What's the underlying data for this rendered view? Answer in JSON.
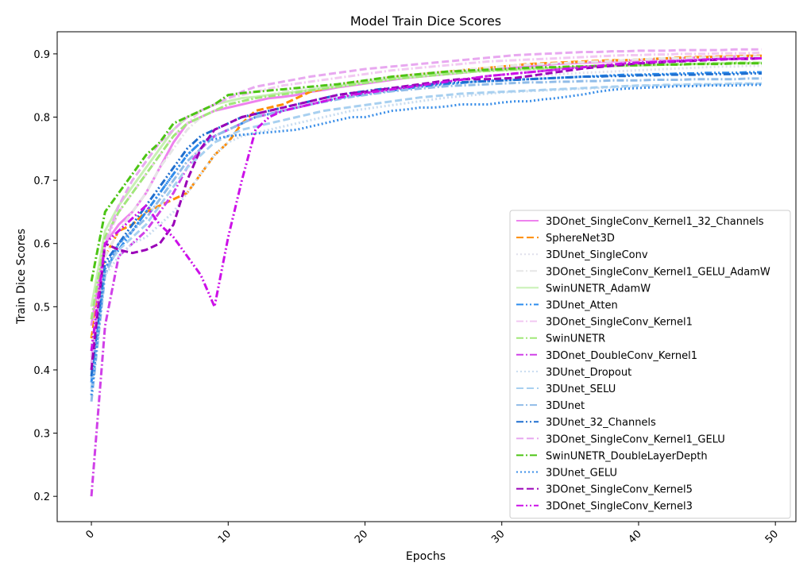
{
  "chart_data": {
    "type": "line",
    "title": "Model Train Dice Scores",
    "xlabel": "Epochs",
    "ylabel": "Train Dice Scores",
    "xlim": [
      -2.5,
      51.5
    ],
    "ylim": [
      0.16,
      0.935
    ],
    "xticks": [
      0,
      10,
      20,
      30,
      40,
      50
    ],
    "yticks": [
      0.2,
      0.3,
      0.4,
      0.5,
      0.6,
      0.7,
      0.8,
      0.9
    ],
    "grid": false,
    "legend_position": "lower-right",
    "series": [
      {
        "name": "3DOnet_SingleConv_Kernel1_32_Channels",
        "color": "#ee82ee",
        "dash": "solid",
        "values": [
          0.47,
          0.6,
          0.63,
          0.65,
          0.68,
          0.72,
          0.76,
          0.79,
          0.8,
          0.81,
          0.815,
          0.82,
          0.825,
          0.83,
          0.832,
          0.835,
          0.84,
          0.843,
          0.847,
          0.85,
          0.853,
          0.856,
          0.859,
          0.862,
          0.864,
          0.866,
          0.868,
          0.87,
          0.872,
          0.874,
          0.876,
          0.878,
          0.88,
          0.882,
          0.884,
          0.885,
          0.886,
          0.887,
          0.888,
          0.889,
          0.89,
          0.891,
          0.892,
          0.893,
          0.894,
          0.895,
          0.895,
          0.896,
          0.896,
          0.897
        ]
      },
      {
        "name": "SphereNet3D",
        "color": "#ff8c00",
        "dash": "dashed",
        "values": [
          0.45,
          0.58,
          0.62,
          0.63,
          0.65,
          0.66,
          0.67,
          0.68,
          0.71,
          0.74,
          0.76,
          0.79,
          0.81,
          0.815,
          0.82,
          0.83,
          0.84,
          0.845,
          0.85,
          0.855,
          0.855,
          0.86,
          0.863,
          0.866,
          0.868,
          0.87,
          0.872,
          0.874,
          0.876,
          0.878,
          0.88,
          0.882,
          0.884,
          0.885,
          0.886,
          0.887,
          0.888,
          0.889,
          0.89,
          0.89,
          0.891,
          0.892,
          0.893,
          0.894,
          0.895,
          0.895,
          0.896,
          0.896,
          0.897,
          0.897
        ]
      },
      {
        "name": "3DUnet_SingleConv",
        "color": "#e0e0ec",
        "dash": "dotted",
        "values": [
          0.44,
          0.57,
          0.6,
          0.62,
          0.64,
          0.67,
          0.7,
          0.73,
          0.75,
          0.77,
          0.78,
          0.79,
          0.8,
          0.805,
          0.81,
          0.815,
          0.82,
          0.825,
          0.83,
          0.833,
          0.836,
          0.839,
          0.842,
          0.845,
          0.847,
          0.85,
          0.852,
          0.854,
          0.856,
          0.858,
          0.86,
          0.862,
          0.864,
          0.866,
          0.868,
          0.869,
          0.87,
          0.871,
          0.872,
          0.873,
          0.874,
          0.875,
          0.876,
          0.877,
          0.878,
          0.879,
          0.88,
          0.88,
          0.881,
          0.881
        ]
      },
      {
        "name": "3DOnet_SingleConv_Kernel1_GELU_AdamW",
        "color": "#e6e6e6",
        "dash": "dashdot",
        "values": [
          0.43,
          0.58,
          0.62,
          0.65,
          0.68,
          0.72,
          0.75,
          0.78,
          0.8,
          0.81,
          0.82,
          0.825,
          0.83,
          0.835,
          0.84,
          0.843,
          0.846,
          0.849,
          0.852,
          0.855,
          0.858,
          0.861,
          0.864,
          0.866,
          0.868,
          0.87,
          0.872,
          0.874,
          0.876,
          0.878,
          0.88,
          0.882,
          0.883,
          0.884,
          0.885,
          0.886,
          0.887,
          0.888,
          0.889,
          0.89,
          0.891,
          0.892,
          0.893,
          0.893,
          0.894,
          0.894,
          0.895,
          0.895,
          0.896,
          0.896
        ]
      },
      {
        "name": "SwinUNETR_AdamW",
        "color": "#c8f0b4",
        "dash": "solid",
        "values": [
          0.5,
          0.62,
          0.66,
          0.69,
          0.72,
          0.75,
          0.78,
          0.8,
          0.81,
          0.82,
          0.825,
          0.83,
          0.832,
          0.835,
          0.838,
          0.84,
          0.843,
          0.846,
          0.849,
          0.852,
          0.855,
          0.858,
          0.861,
          0.863,
          0.865,
          0.867,
          0.869,
          0.871,
          0.872,
          0.873,
          0.874,
          0.875,
          0.876,
          0.877,
          0.878,
          0.879,
          0.88,
          0.88,
          0.881,
          0.881,
          0.882,
          0.882,
          0.883,
          0.883,
          0.884,
          0.884,
          0.885,
          0.885,
          0.885,
          0.886
        ]
      },
      {
        "name": "3DUnet_Atten",
        "color": "#2b8cee",
        "dash": "dashdotdot",
        "values": [
          0.38,
          0.56,
          0.59,
          0.62,
          0.65,
          0.68,
          0.71,
          0.74,
          0.76,
          0.77,
          0.78,
          0.79,
          0.8,
          0.805,
          0.81,
          0.815,
          0.82,
          0.825,
          0.83,
          0.833,
          0.836,
          0.839,
          0.842,
          0.845,
          0.848,
          0.85,
          0.852,
          0.854,
          0.856,
          0.857,
          0.858,
          0.859,
          0.86,
          0.861,
          0.862,
          0.863,
          0.864,
          0.865,
          0.866,
          0.867,
          0.867,
          0.868,
          0.868,
          0.869,
          0.869,
          0.87,
          0.87,
          0.87,
          0.871,
          0.871
        ]
      },
      {
        "name": "3DOnet_SingleConv_Kernel1",
        "color": "#f2c8f2",
        "dash": "dashdot",
        "values": [
          0.42,
          0.6,
          0.65,
          0.68,
          0.71,
          0.74,
          0.77,
          0.79,
          0.81,
          0.82,
          0.83,
          0.835,
          0.84,
          0.845,
          0.85,
          0.853,
          0.856,
          0.859,
          0.862,
          0.865,
          0.868,
          0.871,
          0.874,
          0.876,
          0.878,
          0.88,
          0.882,
          0.884,
          0.886,
          0.888,
          0.889,
          0.89,
          0.891,
          0.892,
          0.893,
          0.894,
          0.895,
          0.896,
          0.897,
          0.898,
          0.898,
          0.899,
          0.899,
          0.9,
          0.9,
          0.9,
          0.901,
          0.901,
          0.901,
          0.902
        ]
      },
      {
        "name": "SwinUNETR",
        "color": "#a0e878",
        "dash": "dashdot",
        "values": [
          0.48,
          0.61,
          0.65,
          0.68,
          0.71,
          0.74,
          0.77,
          0.79,
          0.8,
          0.81,
          0.82,
          0.825,
          0.83,
          0.833,
          0.836,
          0.839,
          0.842,
          0.845,
          0.848,
          0.851,
          0.854,
          0.857,
          0.86,
          0.862,
          0.864,
          0.866,
          0.868,
          0.87,
          0.872,
          0.873,
          0.874,
          0.875,
          0.876,
          0.877,
          0.878,
          0.879,
          0.88,
          0.881,
          0.881,
          0.882,
          0.882,
          0.883,
          0.883,
          0.884,
          0.884,
          0.885,
          0.885,
          0.886,
          0.886,
          0.886
        ]
      },
      {
        "name": "3DOnet_DoubleConv_Kernel1",
        "color": "#d040e8",
        "dash": "dashdot",
        "values": [
          0.2,
          0.47,
          0.58,
          0.6,
          0.62,
          0.65,
          0.68,
          0.72,
          0.75,
          0.77,
          0.78,
          0.79,
          0.8,
          0.805,
          0.81,
          0.815,
          0.82,
          0.825,
          0.83,
          0.835,
          0.838,
          0.841,
          0.844,
          0.847,
          0.85,
          0.853,
          0.856,
          0.859,
          0.862,
          0.865,
          0.867,
          0.869,
          0.871,
          0.873,
          0.875,
          0.877,
          0.879,
          0.881,
          0.883,
          0.885,
          0.886,
          0.887,
          0.888,
          0.889,
          0.89,
          0.891,
          0.892,
          0.892,
          0.893,
          0.893
        ]
      },
      {
        "name": "3DUnet_Dropout",
        "color": "#c8dcf0",
        "dash": "dotted",
        "values": [
          0.36,
          0.55,
          0.58,
          0.6,
          0.61,
          0.63,
          0.65,
          0.68,
          0.71,
          0.74,
          0.76,
          0.77,
          0.775,
          0.78,
          0.785,
          0.79,
          0.795,
          0.8,
          0.805,
          0.81,
          0.813,
          0.816,
          0.819,
          0.822,
          0.825,
          0.828,
          0.831,
          0.833,
          0.835,
          0.837,
          0.839,
          0.84,
          0.841,
          0.842,
          0.843,
          0.844,
          0.845,
          0.846,
          0.847,
          0.848,
          0.849,
          0.85,
          0.85,
          0.851,
          0.851,
          0.852,
          0.852,
          0.853,
          0.853,
          0.853
        ]
      },
      {
        "name": "3DUnet_SELU",
        "color": "#a8d0f0",
        "dash": "dashed",
        "values": [
          0.37,
          0.56,
          0.59,
          0.61,
          0.63,
          0.66,
          0.69,
          0.72,
          0.74,
          0.76,
          0.77,
          0.78,
          0.785,
          0.79,
          0.795,
          0.8,
          0.805,
          0.81,
          0.813,
          0.816,
          0.819,
          0.822,
          0.825,
          0.828,
          0.831,
          0.833,
          0.835,
          0.837,
          0.838,
          0.839,
          0.84,
          0.841,
          0.842,
          0.843,
          0.844,
          0.845,
          0.846,
          0.847,
          0.848,
          0.849,
          0.85,
          0.85,
          0.851,
          0.851,
          0.852,
          0.852,
          0.852,
          0.853,
          0.853,
          0.853
        ]
      },
      {
        "name": "3DUnet",
        "color": "#90bce8",
        "dash": "dashdot",
        "values": [
          0.35,
          0.55,
          0.6,
          0.62,
          0.64,
          0.67,
          0.7,
          0.73,
          0.75,
          0.77,
          0.78,
          0.79,
          0.8,
          0.805,
          0.81,
          0.815,
          0.82,
          0.824,
          0.828,
          0.832,
          0.835,
          0.838,
          0.841,
          0.843,
          0.845,
          0.847,
          0.849,
          0.85,
          0.851,
          0.852,
          0.853,
          0.854,
          0.855,
          0.855,
          0.856,
          0.856,
          0.857,
          0.857,
          0.858,
          0.858,
          0.858,
          0.859,
          0.859,
          0.859,
          0.86,
          0.86,
          0.86,
          0.86,
          0.861,
          0.861
        ]
      },
      {
        "name": "3DUnet_32_Channels",
        "color": "#1f6fcf",
        "dash": "dashdotdot",
        "values": [
          0.39,
          0.57,
          0.6,
          0.63,
          0.66,
          0.69,
          0.72,
          0.75,
          0.77,
          0.78,
          0.79,
          0.8,
          0.805,
          0.81,
          0.815,
          0.82,
          0.825,
          0.83,
          0.835,
          0.838,
          0.841,
          0.844,
          0.846,
          0.848,
          0.85,
          0.852,
          0.854,
          0.855,
          0.856,
          0.857,
          0.858,
          0.859,
          0.86,
          0.861,
          0.862,
          0.863,
          0.864,
          0.864,
          0.865,
          0.865,
          0.866,
          0.866,
          0.867,
          0.867,
          0.867,
          0.868,
          0.868,
          0.868,
          0.869,
          0.869
        ]
      },
      {
        "name": "3DOnet_SingleConv_Kernel1_GELU",
        "color": "#e8a8f0",
        "dash": "dashed",
        "values": [
          0.41,
          0.6,
          0.66,
          0.7,
          0.73,
          0.76,
          0.78,
          0.8,
          0.81,
          0.82,
          0.83,
          0.84,
          0.848,
          0.852,
          0.856,
          0.86,
          0.864,
          0.867,
          0.87,
          0.873,
          0.876,
          0.878,
          0.88,
          0.882,
          0.884,
          0.886,
          0.888,
          0.89,
          0.892,
          0.894,
          0.896,
          0.898,
          0.899,
          0.9,
          0.901,
          0.902,
          0.903,
          0.903,
          0.904,
          0.904,
          0.905,
          0.905,
          0.905,
          0.906,
          0.906,
          0.906,
          0.906,
          0.907,
          0.907,
          0.907
        ]
      },
      {
        "name": "SwinUNETR_DoubleLayerDepth",
        "color": "#4cc414",
        "dash": "dashdot",
        "values": [
          0.54,
          0.65,
          0.68,
          0.71,
          0.74,
          0.76,
          0.79,
          0.8,
          0.81,
          0.82,
          0.835,
          0.838,
          0.84,
          0.842,
          0.844,
          0.846,
          0.848,
          0.85,
          0.852,
          0.855,
          0.858,
          0.861,
          0.864,
          0.866,
          0.868,
          0.87,
          0.872,
          0.873,
          0.874,
          0.875,
          0.876,
          0.877,
          0.878,
          0.879,
          0.879,
          0.88,
          0.88,
          0.881,
          0.881,
          0.882,
          0.882,
          0.883,
          0.883,
          0.883,
          0.884,
          0.884,
          0.884,
          0.885,
          0.885,
          0.885
        ]
      },
      {
        "name": "3DUnet_GELU",
        "color": "#3a8ee8",
        "dash": "dotted",
        "values": [
          0.36,
          0.56,
          0.6,
          0.62,
          0.65,
          0.68,
          0.71,
          0.74,
          0.76,
          0.765,
          0.77,
          0.772,
          0.774,
          0.776,
          0.778,
          0.78,
          0.785,
          0.79,
          0.795,
          0.8,
          0.8,
          0.805,
          0.81,
          0.812,
          0.815,
          0.815,
          0.817,
          0.82,
          0.82,
          0.82,
          0.823,
          0.825,
          0.825,
          0.828,
          0.83,
          0.833,
          0.836,
          0.84,
          0.843,
          0.845,
          0.846,
          0.847,
          0.848,
          0.849,
          0.849,
          0.85,
          0.85,
          0.85,
          0.851,
          0.851
        ]
      },
      {
        "name": "3DOnet_SingleConv_Kernel5",
        "color": "#9a00b8",
        "dash": "dashed",
        "values": [
          0.4,
          0.6,
          0.59,
          0.585,
          0.59,
          0.6,
          0.63,
          0.7,
          0.75,
          0.78,
          0.79,
          0.8,
          0.805,
          0.81,
          0.815,
          0.82,
          0.825,
          0.83,
          0.835,
          0.838,
          0.84,
          0.843,
          0.846,
          0.849,
          0.852,
          0.855,
          0.858,
          0.86,
          0.86,
          0.86,
          0.861,
          0.862,
          0.865,
          0.868,
          0.871,
          0.874,
          0.877,
          0.879,
          0.881,
          0.883,
          0.885,
          0.886,
          0.887,
          0.888,
          0.889,
          0.89,
          0.891,
          0.892,
          0.892,
          0.893
        ]
      },
      {
        "name": "3DOnet_SingleConv_Kernel3",
        "color": "#cc10e8",
        "dash": "dashdotdot",
        "values": [
          0.43,
          0.6,
          0.62,
          0.64,
          0.66,
          0.63,
          0.61,
          0.58,
          0.55,
          0.5,
          0.61,
          0.7,
          0.78,
          0.8,
          0.81,
          0.815,
          0.82,
          0.825,
          0.83,
          0.835,
          0.838,
          0.841,
          0.844,
          0.847,
          0.85,
          0.853,
          0.856,
          0.859,
          0.862,
          0.865,
          0.867,
          0.869,
          0.871,
          0.873,
          0.875,
          0.877,
          0.879,
          0.881,
          0.883,
          0.885,
          0.886,
          0.887,
          0.888,
          0.889,
          0.89,
          0.891,
          0.892,
          0.892,
          0.893,
          0.893
        ]
      }
    ]
  }
}
